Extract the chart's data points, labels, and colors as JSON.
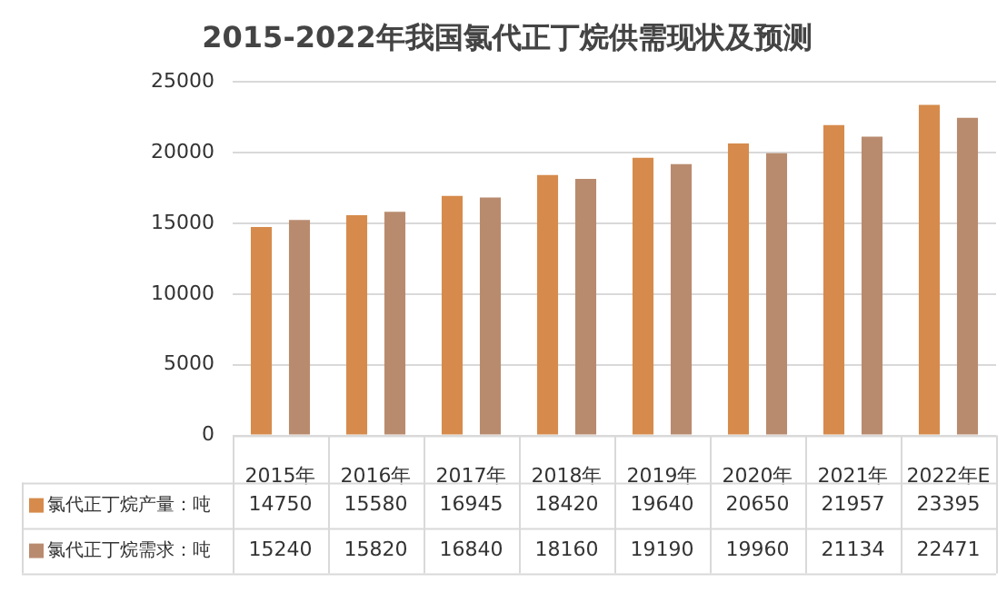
{
  "chart_data": {
    "type": "bar",
    "title": "2015-2022年我国氯代正丁烷供需现状及预测",
    "categories": [
      "2015年",
      "2016年",
      "2017年",
      "2018年",
      "2019年",
      "2020年",
      "2021年",
      "2022年E"
    ],
    "series": [
      {
        "name": "氯代正丁烷产量：吨",
        "color": "#d68b4c",
        "values": [
          14750,
          15580,
          16945,
          18420,
          19640,
          20650,
          21957,
          23395
        ]
      },
      {
        "name": "氯代正丁烷需求：吨",
        "color": "#b98b6e",
        "values": [
          15240,
          15820,
          16840,
          18160,
          19190,
          19960,
          21134,
          22471
        ]
      }
    ],
    "ylim": [
      0,
      25000
    ],
    "yticks": [
      0,
      5000,
      10000,
      15000,
      20000,
      25000
    ],
    "grid": "y",
    "data_labels": true,
    "legend": "bottom"
  }
}
